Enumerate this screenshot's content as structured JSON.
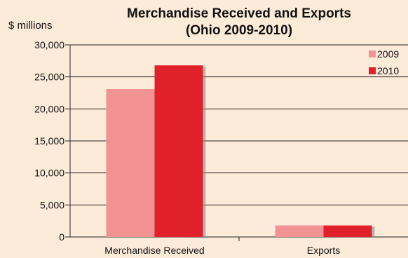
{
  "chart_data": {
    "type": "bar",
    "title": "Merchandise Received and Exports",
    "subtitle": "(Ohio 2009-2010)",
    "ylabel": "$ millions",
    "xlabel": "",
    "categories": [
      "Merchandise Received",
      "Exports"
    ],
    "series": [
      {
        "name": "2009",
        "values": [
          23100,
          1800
        ],
        "color": "#f29293"
      },
      {
        "name": "2010",
        "values": [
          26800,
          1800
        ],
        "color": "#e0202a"
      }
    ],
    "ylim": [
      0,
      30000
    ],
    "yticks": [
      0,
      5000,
      10000,
      15000,
      20000,
      25000,
      30000
    ],
    "ytick_labels": [
      "0",
      "5,000",
      "10,000",
      "15,000",
      "20,000",
      "25,000",
      "30,000"
    ],
    "grid": true,
    "legend": "top-right"
  }
}
